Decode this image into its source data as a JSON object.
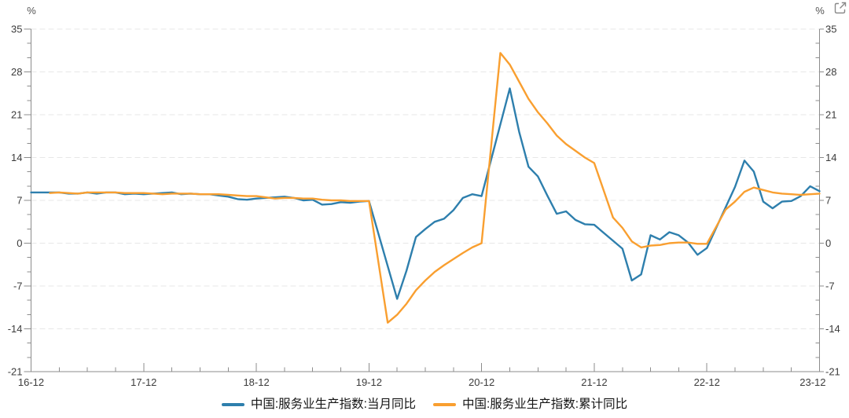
{
  "header": {
    "icons": {
      "external_link": "open-in-new-window"
    }
  },
  "chart_data": {
    "type": "line",
    "title": "",
    "unit_left": "%",
    "unit_right": "%",
    "legend_position": "bottom-center",
    "grid": "horizontal-dashed",
    "x_axis": {
      "start": "2016-12",
      "end": "2023-12",
      "major_tick_every_months": 12,
      "minor_tick_every_months": 3,
      "major_tick_labels": [
        "16-12",
        "17-12",
        "18-12",
        "19-12",
        "20-12",
        "21-12",
        "22-12",
        "23-12"
      ]
    },
    "y_axis": {
      "min": -21,
      "max": 35,
      "major_step": 7,
      "minor_divisions_per_major": 3,
      "tick_labels": [
        "35",
        "28",
        "21",
        "14",
        "7",
        "0",
        "-7",
        "-14",
        "-21"
      ],
      "dual": true
    },
    "series": [
      {
        "name": "中国:服务业生产指数:当月同比",
        "color": "#2e7fad",
        "points": [
          [
            "2016-12",
            8.3
          ],
          [
            "2017-03",
            8.3
          ],
          [
            "2017-04",
            8.1
          ],
          [
            "2017-05",
            8.1
          ],
          [
            "2017-06",
            8.3
          ],
          [
            "2017-07",
            8.1
          ],
          [
            "2017-08",
            8.3
          ],
          [
            "2017-09",
            8.3
          ],
          [
            "2017-10",
            8.0
          ],
          [
            "2017-11",
            8.1
          ],
          [
            "2017-12",
            8.0
          ],
          [
            "2018-03",
            8.3
          ],
          [
            "2018-04",
            8.0
          ],
          [
            "2018-05",
            8.1
          ],
          [
            "2018-06",
            8.0
          ],
          [
            "2018-07",
            8.0
          ],
          [
            "2018-08",
            7.8
          ],
          [
            "2018-09",
            7.6
          ],
          [
            "2018-10",
            7.2
          ],
          [
            "2018-11",
            7.1
          ],
          [
            "2018-12",
            7.3
          ],
          [
            "2019-03",
            7.6
          ],
          [
            "2019-04",
            7.4
          ],
          [
            "2019-05",
            7.0
          ],
          [
            "2019-06",
            7.1
          ],
          [
            "2019-07",
            6.3
          ],
          [
            "2019-08",
            6.4
          ],
          [
            "2019-09",
            6.7
          ],
          [
            "2019-10",
            6.6
          ],
          [
            "2019-11",
            6.8
          ],
          [
            "2019-12",
            6.9
          ],
          [
            "2020-03",
            -9.1
          ],
          [
            "2020-04",
            -4.5
          ],
          [
            "2020-05",
            1.0
          ],
          [
            "2020-06",
            2.3
          ],
          [
            "2020-07",
            3.5
          ],
          [
            "2020-08",
            4.0
          ],
          [
            "2020-09",
            5.4
          ],
          [
            "2020-10",
            7.4
          ],
          [
            "2020-11",
            8.0
          ],
          [
            "2020-12",
            7.7
          ],
          [
            "2021-03",
            25.3
          ],
          [
            "2021-04",
            18.2
          ],
          [
            "2021-05",
            12.5
          ],
          [
            "2021-06",
            10.9
          ],
          [
            "2021-07",
            7.8
          ],
          [
            "2021-08",
            4.8
          ],
          [
            "2021-09",
            5.2
          ],
          [
            "2021-10",
            3.8
          ],
          [
            "2021-11",
            3.1
          ],
          [
            "2021-12",
            3.0
          ],
          [
            "2022-03",
            -0.9
          ],
          [
            "2022-04",
            -6.1
          ],
          [
            "2022-05",
            -5.1
          ],
          [
            "2022-06",
            1.3
          ],
          [
            "2022-07",
            0.6
          ],
          [
            "2022-08",
            1.8
          ],
          [
            "2022-09",
            1.3
          ],
          [
            "2022-10",
            0.1
          ],
          [
            "2022-11",
            -1.9
          ],
          [
            "2022-12",
            -0.8
          ],
          [
            "2023-03",
            9.2
          ],
          [
            "2023-04",
            13.5
          ],
          [
            "2023-05",
            11.7
          ],
          [
            "2023-06",
            6.8
          ],
          [
            "2023-07",
            5.7
          ],
          [
            "2023-08",
            6.8
          ],
          [
            "2023-09",
            6.9
          ],
          [
            "2023-10",
            7.7
          ],
          [
            "2023-11",
            9.3
          ],
          [
            "2023-12",
            8.5
          ]
        ]
      },
      {
        "name": "中国:服务业生产指数:累计同比",
        "color": "#f99f30",
        "points": [
          [
            "2017-02",
            8.2
          ],
          [
            "2017-03",
            8.3
          ],
          [
            "2017-04",
            8.2
          ],
          [
            "2017-05",
            8.1
          ],
          [
            "2017-06",
            8.3
          ],
          [
            "2017-07",
            8.3
          ],
          [
            "2017-08",
            8.3
          ],
          [
            "2017-09",
            8.3
          ],
          [
            "2017-10",
            8.2
          ],
          [
            "2017-11",
            8.2
          ],
          [
            "2017-12",
            8.2
          ],
          [
            "2018-02",
            8.0
          ],
          [
            "2018-03",
            8.1
          ],
          [
            "2018-04",
            8.1
          ],
          [
            "2018-05",
            8.1
          ],
          [
            "2018-06",
            8.0
          ],
          [
            "2018-07",
            8.0
          ],
          [
            "2018-08",
            8.0
          ],
          [
            "2018-09",
            7.9
          ],
          [
            "2018-10",
            7.8
          ],
          [
            "2018-11",
            7.7
          ],
          [
            "2018-12",
            7.7
          ],
          [
            "2019-02",
            7.3
          ],
          [
            "2019-03",
            7.4
          ],
          [
            "2019-04",
            7.4
          ],
          [
            "2019-05",
            7.3
          ],
          [
            "2019-06",
            7.3
          ],
          [
            "2019-07",
            7.1
          ],
          [
            "2019-08",
            7.0
          ],
          [
            "2019-09",
            7.0
          ],
          [
            "2019-10",
            6.9
          ],
          [
            "2019-11",
            6.9
          ],
          [
            "2019-12",
            6.9
          ],
          [
            "2020-02",
            -13.0
          ],
          [
            "2020-03",
            -11.7
          ],
          [
            "2020-04",
            -9.9
          ],
          [
            "2020-05",
            -7.7
          ],
          [
            "2020-06",
            -6.1
          ],
          [
            "2020-07",
            -4.7
          ],
          [
            "2020-08",
            -3.6
          ],
          [
            "2020-09",
            -2.6
          ],
          [
            "2020-10",
            -1.6
          ],
          [
            "2020-11",
            -0.7
          ],
          [
            "2020-12",
            0.0
          ],
          [
            "2021-02",
            31.1
          ],
          [
            "2021-03",
            29.2
          ],
          [
            "2021-04",
            26.4
          ],
          [
            "2021-05",
            23.6
          ],
          [
            "2021-06",
            21.4
          ],
          [
            "2021-07",
            19.6
          ],
          [
            "2021-08",
            17.6
          ],
          [
            "2021-09",
            16.2
          ],
          [
            "2021-10",
            15.1
          ],
          [
            "2021-11",
            14.0
          ],
          [
            "2021-12",
            13.1
          ],
          [
            "2022-02",
            4.2
          ],
          [
            "2022-03",
            2.5
          ],
          [
            "2022-04",
            0.3
          ],
          [
            "2022-05",
            -0.7
          ],
          [
            "2022-06",
            -0.4
          ],
          [
            "2022-07",
            -0.3
          ],
          [
            "2022-08",
            0.0
          ],
          [
            "2022-09",
            0.1
          ],
          [
            "2022-10",
            0.1
          ],
          [
            "2022-11",
            -0.1
          ],
          [
            "2022-12",
            -0.1
          ],
          [
            "2023-02",
            5.5
          ],
          [
            "2023-03",
            6.8
          ],
          [
            "2023-04",
            8.4
          ],
          [
            "2023-05",
            9.1
          ],
          [
            "2023-06",
            8.7
          ],
          [
            "2023-07",
            8.3
          ],
          [
            "2023-08",
            8.1
          ],
          [
            "2023-09",
            8.0
          ],
          [
            "2023-10",
            7.9
          ],
          [
            "2023-11",
            8.0
          ],
          [
            "2023-12",
            8.1
          ]
        ]
      }
    ],
    "colors": {
      "axis": "#8c8c8c",
      "grid": "#e7e7e7",
      "tick_label": "#3c3c3c",
      "legend_text": "#141414"
    }
  }
}
